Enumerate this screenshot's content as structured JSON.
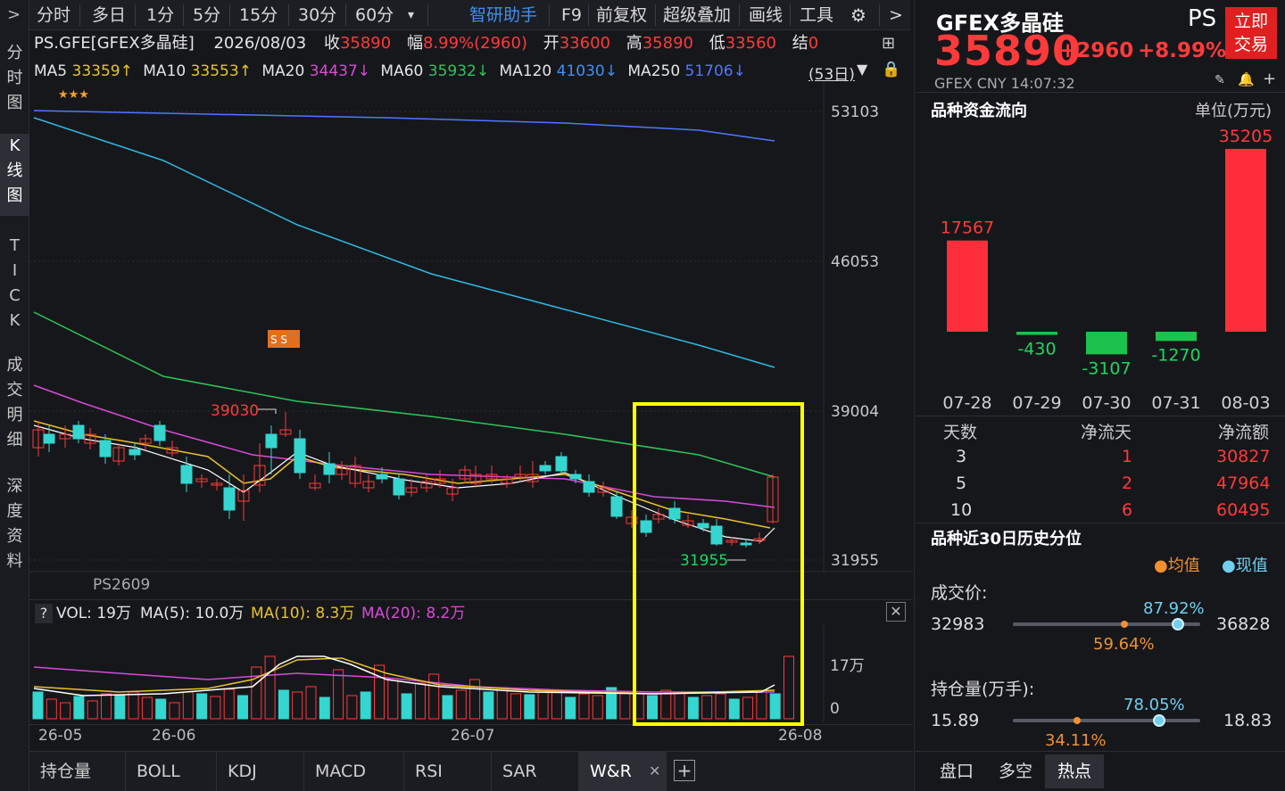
{
  "left_nav": {
    "items": [
      {
        "label": "分\n时\n图"
      },
      {
        "label": "K\n线\n图"
      },
      {
        "label": "T\nI\nC\nK"
      },
      {
        "label": "成\n交\n明\n细"
      },
      {
        "label": "深\n度\n资\n料"
      }
    ]
  },
  "toolbar": {
    "items": [
      {
        "label": "分时"
      },
      {
        "label": "多日"
      },
      {
        "label": "1分"
      },
      {
        "label": "5分"
      },
      {
        "label": "15分"
      },
      {
        "label": "30分"
      },
      {
        "label": "60分"
      },
      {
        "label": "智研助手"
      },
      {
        "label": "F9"
      },
      {
        "label": "前复权"
      },
      {
        "label": "超级叠加"
      },
      {
        "label": "画线"
      },
      {
        "label": "工具"
      }
    ]
  },
  "quote_line": {
    "code": "PS.GFE[GFEX多晶硅]",
    "date": "2026/08/03",
    "close_label": "收",
    "close": "35890",
    "change_label": "幅",
    "change": "8.99%(2960)",
    "open_label": "开",
    "open": "33600",
    "high_label": "高",
    "high": "35890",
    "low_label": "低",
    "low": "33560",
    "settle_label": "结",
    "settle": "0"
  },
  "ma_line": {
    "ma5_label": "MA5",
    "ma5": "33359↑",
    "ma10_label": "MA10",
    "ma10": "33553↑",
    "ma20_label": "MA20",
    "ma20": "34437↓",
    "ma60_label": "MA60",
    "ma60": "35932↓",
    "ma120_label": "MA120",
    "ma120": "41030↓",
    "ma250_label": "MA250",
    "ma250": "51706↓",
    "period": "(53日)"
  },
  "chart": {
    "y_ticks": [
      "53103",
      "46053",
      "39004",
      "31955"
    ],
    "high_annot": "39030",
    "low_annot": "31955",
    "contract": "PS2609",
    "stars": "★★★",
    "ss_badge": "S S"
  },
  "volume": {
    "vol_label": "VOL: 19万",
    "ma5": "MA(5): 10.0万",
    "ma10": "MA(10): 8.3万",
    "ma20": "MA(20): 8.2万",
    "y_ticks": [
      "17万",
      "0"
    ],
    "help": "?"
  },
  "x_axis": [
    "26-05",
    "26-06",
    "26-07",
    "26-08"
  ],
  "bottom_tabs": [
    {
      "label": "持仓量"
    },
    {
      "label": "BOLL"
    },
    {
      "label": "KDJ"
    },
    {
      "label": "MACD"
    },
    {
      "label": "RSI"
    },
    {
      "label": "SAR"
    },
    {
      "label": "W&R"
    }
  ],
  "right": {
    "title": "GFEX多晶硅",
    "code": "PS",
    "trade_btn": "立即\n交易",
    "price": "35890",
    "change": "+2960",
    "change_pct": "+8.99%",
    "meta": "GFEX  CNY  14:07:32",
    "flow_title": "品种资金流向",
    "flow_unit": "单位(万元)",
    "flow_bars": [
      {
        "date": "07-28",
        "value": 17567
      },
      {
        "date": "07-29",
        "value": -430
      },
      {
        "date": "07-30",
        "value": -3107
      },
      {
        "date": "07-31",
        "value": -1270
      },
      {
        "date": "08-03",
        "value": 35205
      }
    ],
    "flow_labels": [
      "17567",
      "-430",
      "-3107",
      "-1270",
      "35205"
    ],
    "table_headers": [
      "天数",
      "净流天",
      "净流额"
    ],
    "table_rows": [
      [
        "3",
        "1",
        "30827"
      ],
      [
        "5",
        "2",
        "47964"
      ],
      [
        "10",
        "6",
        "60495"
      ]
    ],
    "pct_title": "品种近30日历史分位",
    "legend_avg": "●均值",
    "legend_now": "●现值",
    "price_label": "成交价:",
    "price_min": "32983",
    "price_max": "36828",
    "price_now_pct": "87.92%",
    "price_avg_pct": "59.64%",
    "price_now_frac": 0.8792,
    "price_avg_frac": 0.5964,
    "oi_label": "持仓量(万手):",
    "oi_min": "15.89",
    "oi_max": "18.83",
    "oi_now_pct": "78.05%",
    "oi_avg_pct": "34.11%",
    "oi_now_frac": 0.7805,
    "oi_avg_frac": 0.3411,
    "tabs": [
      {
        "label": "盘口"
      },
      {
        "label": "多空"
      },
      {
        "label": "热点"
      }
    ]
  },
  "colors": {
    "up": "#ff3a3a",
    "down": "#35d6cf",
    "ma5": "#ffffff",
    "ma10": "#e8c22c",
    "ma20": "#d84ad8",
    "ma60": "#2ec45a",
    "ma120": "#2fb8e0",
    "ma250": "#4e77ff",
    "highlight": "#ffff00"
  }
}
